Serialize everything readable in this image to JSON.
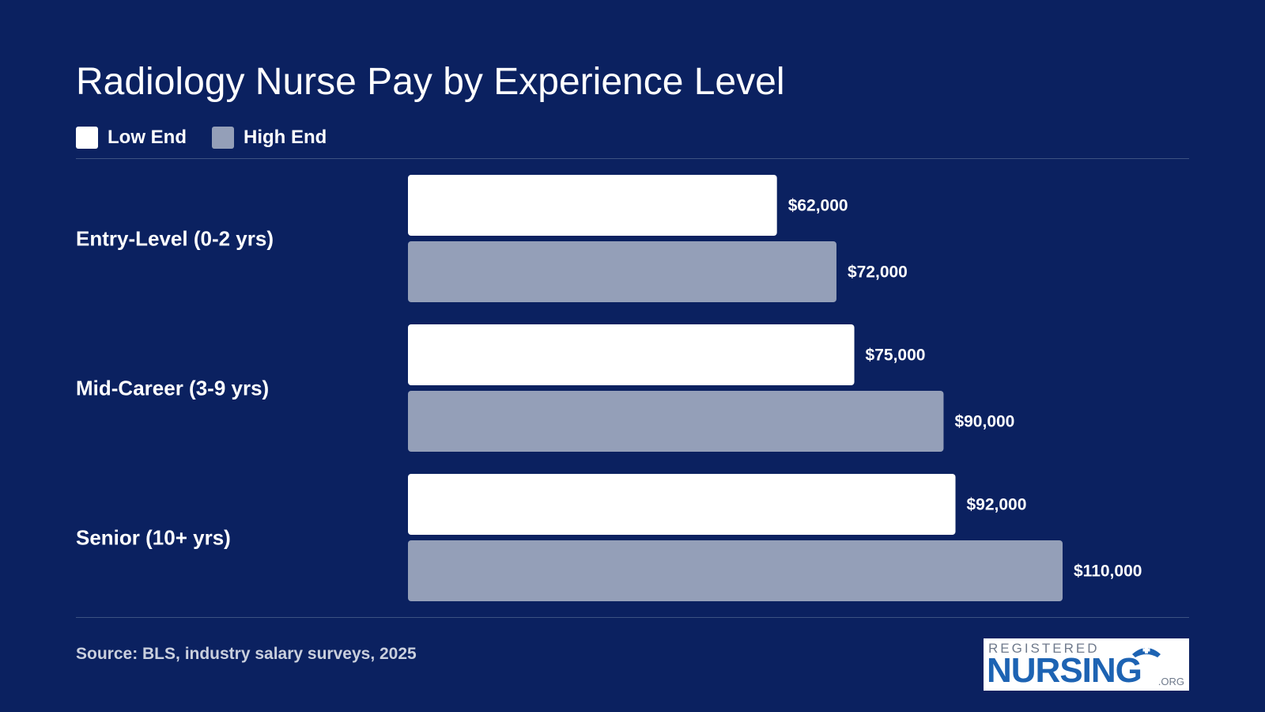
{
  "chart_data": {
    "type": "bar",
    "orientation": "horizontal",
    "title": "Radiology Nurse Pay by Experience Level",
    "categories": [
      "Entry-Level (0-2 yrs)",
      "Mid-Career (3-9 yrs)",
      "Senior (10+ yrs)"
    ],
    "series": [
      {
        "name": "Low End",
        "color": "#ffffff",
        "values": [
          62000,
          75000,
          92000
        ],
        "labels": [
          "$62,000",
          "$75,000",
          "$92,000"
        ]
      },
      {
        "name": "High End",
        "color": "#949fb8",
        "values": [
          72000,
          90000,
          110000
        ],
        "labels": [
          "$72,000",
          "$90,000",
          "$110,000"
        ]
      }
    ],
    "xlim": [
      0,
      130000
    ],
    "grid": false,
    "legend_position": "top-left"
  },
  "source": "Source: BLS, industry salary surveys, 2025",
  "logo": {
    "top": "REGISTERED",
    "main": "NURSING",
    "suffix": ".ORG"
  },
  "colors": {
    "background": "#0b2160",
    "low": "#ffffff",
    "high": "#949fb8",
    "logo_blue": "#1d63b3"
  }
}
